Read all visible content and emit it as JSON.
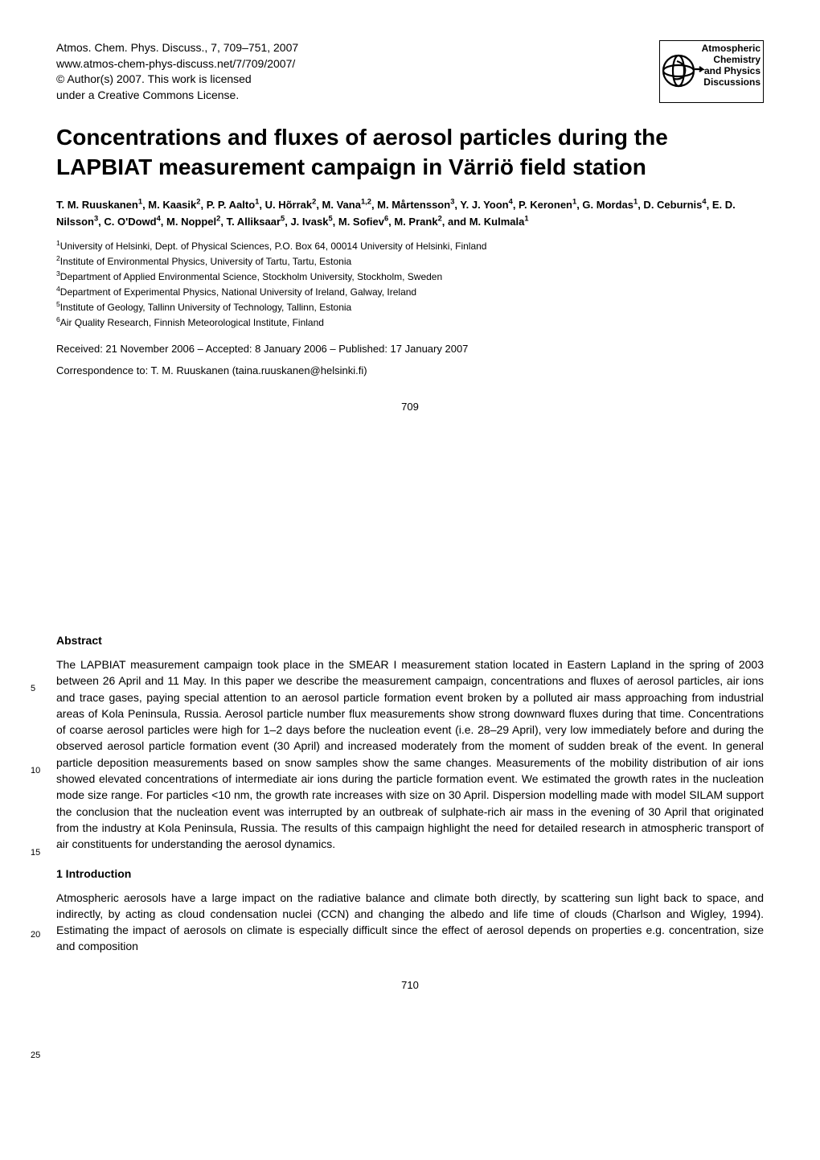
{
  "header": {
    "journal": "Atmos. Chem. Phys. Discuss., 7, 709–751, 2007",
    "url": "www.atmos-chem-phys-discuss.net/7/709/2007/",
    "copyright": "© Author(s) 2007. This work is licensed",
    "license": "under a Creative Commons License."
  },
  "logo": {
    "line1": "Atmospheric",
    "line2": "Chemistry",
    "line3": "and Physics",
    "line4": "Discussions",
    "stroke_color": "#000000",
    "fill_color": "#ffffff",
    "text_color": "#000000"
  },
  "title": "Concentrations and fluxes of aerosol particles during the LAPBIAT measurement campaign in Värriö field station",
  "authors_html": "T. M. Ruuskanen<sup>1</sup>, M. Kaasik<sup>2</sup>, P. P. Aalto<sup>1</sup>, U. Hõrrak<sup>2</sup>, M. Vana<sup>1,2</sup>, M. Mårtensson<sup>3</sup>, Y. J. Yoon<sup>4</sup>, P. Keronen<sup>1</sup>, G. Mordas<sup>1</sup>, D. Ceburnis<sup>4</sup>, E. D. Nilsson<sup>3</sup>, C. O'Dowd<sup>4</sup>, M. Noppel<sup>2</sup>, T. Alliksaar<sup>5</sup>, J. Ivask<sup>5</sup>, M. Sofiev<sup>6</sup>, M. Prank<sup>2</sup>, and M. Kulmala<sup>1</sup>",
  "affiliations": [
    "University of Helsinki, Dept. of Physical Sciences, P.O. Box 64, 00014 University of Helsinki, Finland",
    "Institute of Environmental Physics, University of Tartu, Tartu, Estonia",
    "Department of Applied Environmental Science, Stockholm University, Stockholm, Sweden",
    "Department of Experimental Physics, National University of Ireland, Galway, Ireland",
    "Institute of Geology, Tallinn University of Technology, Tallinn, Estonia",
    "Air Quality Research, Finnish Meteorological Institute, Finland"
  ],
  "dates": "Received: 21 November 2006 – Accepted: 8 January 2006 – Published: 17 January 2007",
  "correspondence": "Correspondence to: T. M. Ruuskanen (taina.ruuskanen@helsinki.fi)",
  "page_number_1": "709",
  "page_number_2": "710",
  "abstract_heading": "Abstract",
  "abstract": "The LAPBIAT measurement campaign took place in the SMEAR I measurement station located in Eastern Lapland in the spring of 2003 between 26 April and 11 May. In this paper we describe the measurement campaign, concentrations and fluxes of aerosol particles, air ions and trace gases, paying special attention to an aerosol particle formation event broken by a polluted air mass approaching from industrial areas of Kola Peninsula, Russia. Aerosol particle number flux measurements show strong downward fluxes during that time. Concentrations of coarse aerosol particles were high for 1–2 days before the nucleation event (i.e. 28–29 April), very low immediately before and during the observed aerosol particle formation event (30 April) and increased moderately from the moment of sudden break of the event. In general particle deposition measurements based on snow samples show the same changes. Measurements of the mobility distribution of air ions showed elevated concentrations of intermediate air ions during the particle formation event. We estimated the growth rates in the nucleation mode size range. For particles <10 nm, the growth rate increases with size on 30 April. Dispersion modelling made with model SILAM support the conclusion that the nucleation event was interrupted by an outbreak of sulphate-rich air mass in the evening of 30 April that originated from the industry at Kola Peninsula, Russia. The results of this campaign highlight the need for detailed research in atmospheric transport of air constituents for understanding the aerosol dynamics.",
  "intro_heading": "1   Introduction",
  "intro": "Atmospheric aerosols have a large impact on the radiative balance and climate both directly, by scattering sun light back to space, and indirectly, by acting as cloud condensation nuclei (CCN) and changing the albedo and life time of clouds (Charlson and Wigley, 1994). Estimating the impact of aerosols on climate is especially difficult since the effect of aerosol depends on properties e.g. concentration, size and composition",
  "line_numbers": {
    "ln5": "5",
    "ln10": "10",
    "ln15": "15",
    "ln20": "20",
    "ln25": "25"
  },
  "style": {
    "body_fontsize": 14,
    "title_fontsize": 28,
    "header_fontsize": 14,
    "affil_fontsize": 12,
    "background_color": "#ffffff",
    "text_color": "#000000"
  }
}
